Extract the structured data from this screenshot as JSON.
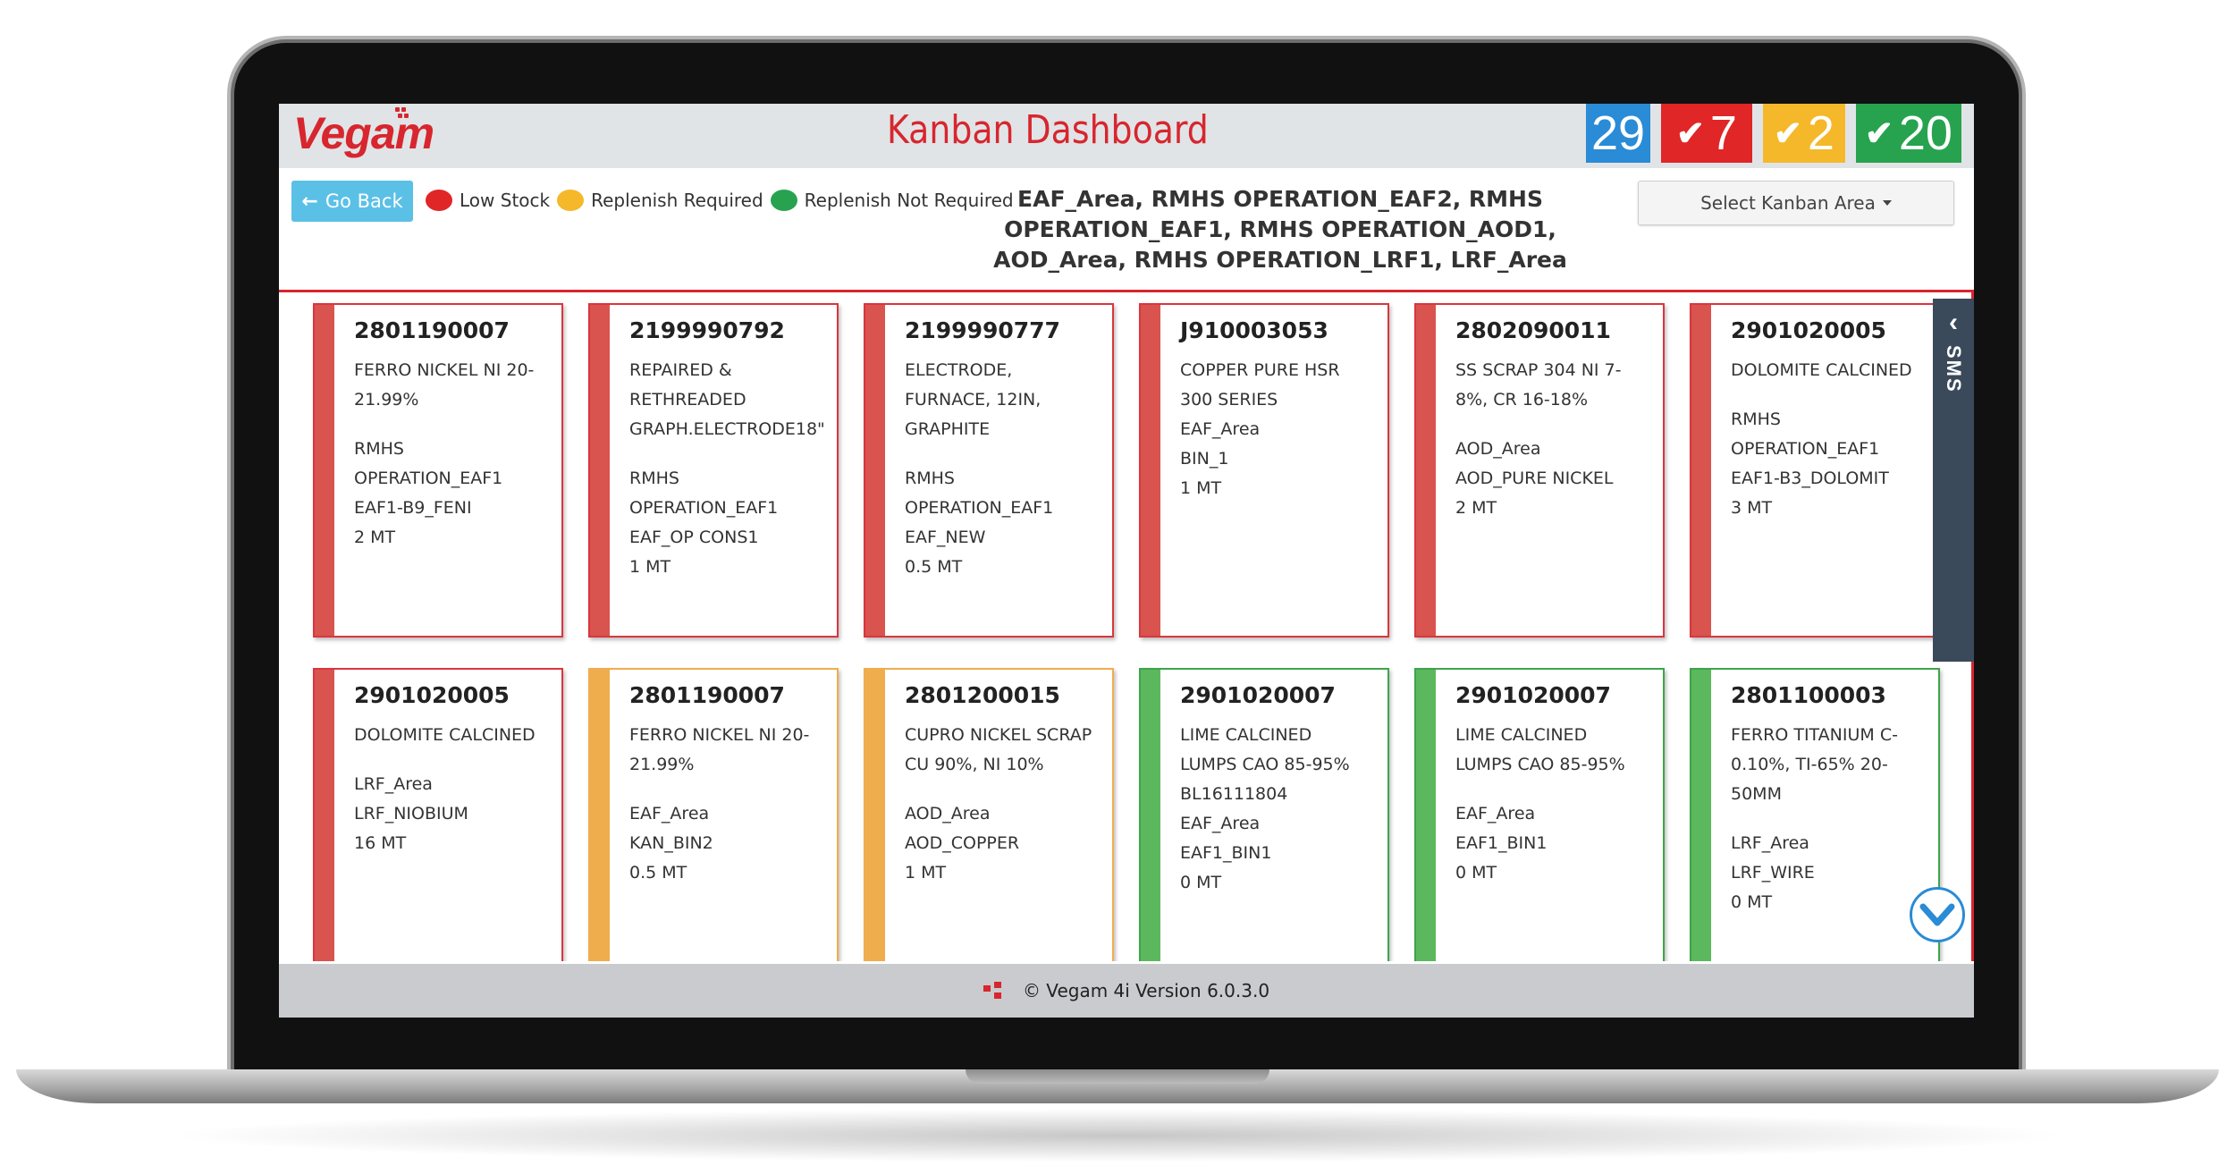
{
  "app": {
    "logo_text": "Vegam",
    "title": "Kanban Dashboard",
    "counters": [
      {
        "label": "29",
        "color": "#2a8bd6",
        "check": false
      },
      {
        "label": "7",
        "color": "#e02626",
        "check": true
      },
      {
        "label": "2",
        "color": "#f4b82a",
        "check": true
      },
      {
        "label": "20",
        "color": "#27a34f",
        "check": true
      }
    ]
  },
  "toolbar": {
    "go_back_label": "Go Back",
    "legend": [
      {
        "label": "Low Stock",
        "color": "#e02626"
      },
      {
        "label": "Replenish Required",
        "color": "#f4b82a"
      },
      {
        "label": "Replenish Not Required",
        "color": "#27a34f"
      }
    ],
    "areas_text": "EAF_Area, RMHS OPERATION_EAF2, RMHS OPERATION_EAF1, RMHS OPERATION_AOD1, AOD_Area, RMHS OPERATION_LRF1, LRF_Area",
    "select_label": "Select Kanban Area"
  },
  "cards": [
    {
      "status": "red",
      "code": "2801190007",
      "lines": [
        "FERRO NICKEL NI 20-21.99%",
        "",
        "RMHS OPERATION_EAF1",
        "EAF1-B9_FENI",
        "2 MT"
      ]
    },
    {
      "status": "red",
      "code": "2199990792",
      "lines": [
        "REPAIRED & RETHREADED GRAPH.ELECTRODE18\"",
        "",
        "RMHS OPERATION_EAF1",
        "EAF_OP CONS1",
        "1 MT"
      ]
    },
    {
      "status": "red",
      "code": "2199990777",
      "lines": [
        "ELECTRODE, FURNACE, 12IN, GRAPHITE",
        "",
        "RMHS OPERATION_EAF1",
        "EAF_NEW",
        "0.5 MT"
      ]
    },
    {
      "status": "red",
      "code": "J910003053",
      "lines": [
        "COPPER PURE HSR",
        "300 SERIES",
        "EAF_Area",
        "BIN_1",
        "1 MT"
      ]
    },
    {
      "status": "red",
      "code": "2802090011",
      "lines": [
        "SS SCRAP 304 NI 7-8%, CR 16-18%",
        "",
        "AOD_Area",
        "AOD_PURE NICKEL",
        "2 MT"
      ]
    },
    {
      "status": "red",
      "code": "2901020005",
      "lines": [
        "DOLOMITE CALCINED",
        "",
        "RMHS OPERATION_EAF1",
        "EAF1-B3_DOLOMIT",
        "3 MT"
      ]
    },
    {
      "status": "red",
      "code": "2901020005",
      "lines": [
        "DOLOMITE CALCINED",
        "",
        "LRF_Area",
        "LRF_NIOBIUM",
        "16 MT"
      ]
    },
    {
      "status": "yellow",
      "code": "2801190007",
      "lines": [
        "FERRO NICKEL NI 20-21.99%",
        "",
        "EAF_Area",
        "KAN_BIN2",
        "0.5 MT"
      ]
    },
    {
      "status": "yellow",
      "code": "2801200015",
      "lines": [
        "CUPRO NICKEL SCRAP CU 90%, NI 10%",
        "",
        "AOD_Area",
        "AOD_COPPER",
        "1 MT"
      ]
    },
    {
      "status": "green",
      "code": "2901020007",
      "lines": [
        "LIME CALCINED LUMPS CAO 85-95%",
        "BL16111804",
        "EAF_Area",
        "EAF1_BIN1",
        "0 MT"
      ]
    },
    {
      "status": "green",
      "code": "2901020007",
      "lines": [
        "LIME CALCINED LUMPS CAO 85-95%",
        "",
        "EAF_Area",
        "EAF1_BIN1",
        "0 MT"
      ]
    },
    {
      "status": "green",
      "code": "2801100003",
      "lines": [
        "FERRO TITANIUM C-0.10%, TI-65% 20-50MM",
        "",
        "LRF_Area",
        "LRF_WIRE",
        "0 MT"
      ]
    }
  ],
  "sidebar": {
    "sms_label": "SMS"
  },
  "footer": {
    "text": "© Vegam 4i Version 6.0.3.0"
  }
}
